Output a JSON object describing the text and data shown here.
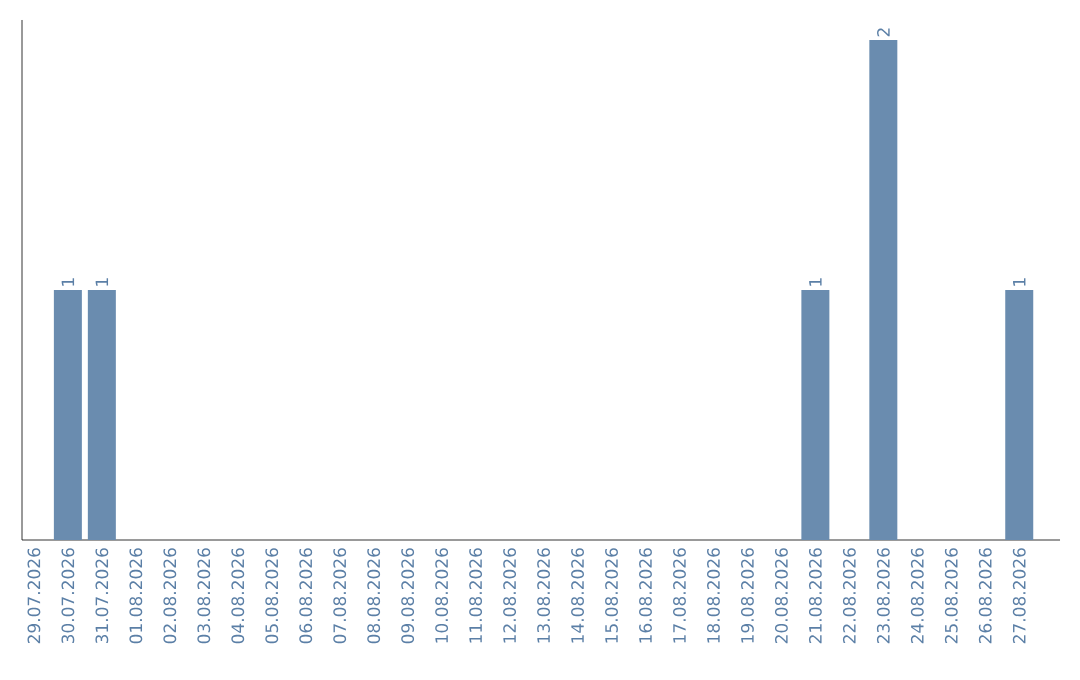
{
  "chart_data": {
    "type": "bar",
    "categories": [
      "29.07.2026",
      "30.07.2026",
      "31.07.2026",
      "01.08.2026",
      "02.08.2026",
      "03.08.2026",
      "04.08.2026",
      "05.08.2026",
      "06.08.2026",
      "07.08.2026",
      "08.08.2026",
      "09.08.2026",
      "10.08.2026",
      "11.08.2026",
      "12.08.2026",
      "13.08.2026",
      "14.08.2026",
      "15.08.2026",
      "16.08.2026",
      "17.08.2026",
      "18.08.2026",
      "19.08.2026",
      "20.08.2026",
      "21.08.2026",
      "22.08.2026",
      "23.08.2026",
      "24.08.2026",
      "25.08.2026",
      "26.08.2026",
      "27.08.2026"
    ],
    "values": [
      0,
      1,
      1,
      0,
      0,
      0,
      0,
      0,
      0,
      0,
      0,
      0,
      0,
      0,
      0,
      0,
      0,
      0,
      0,
      0,
      0,
      0,
      0,
      1,
      0,
      2,
      0,
      0,
      0,
      1
    ],
    "value_labels": [
      null,
      "1",
      "1",
      null,
      null,
      null,
      null,
      null,
      null,
      null,
      null,
      null,
      null,
      null,
      null,
      null,
      null,
      null,
      null,
      null,
      null,
      null,
      null,
      "1",
      null,
      "2",
      null,
      null,
      null,
      "1"
    ],
    "color": "#6a8caf",
    "ylim": [
      0,
      2.08
    ],
    "tick_labels": "x"
  }
}
